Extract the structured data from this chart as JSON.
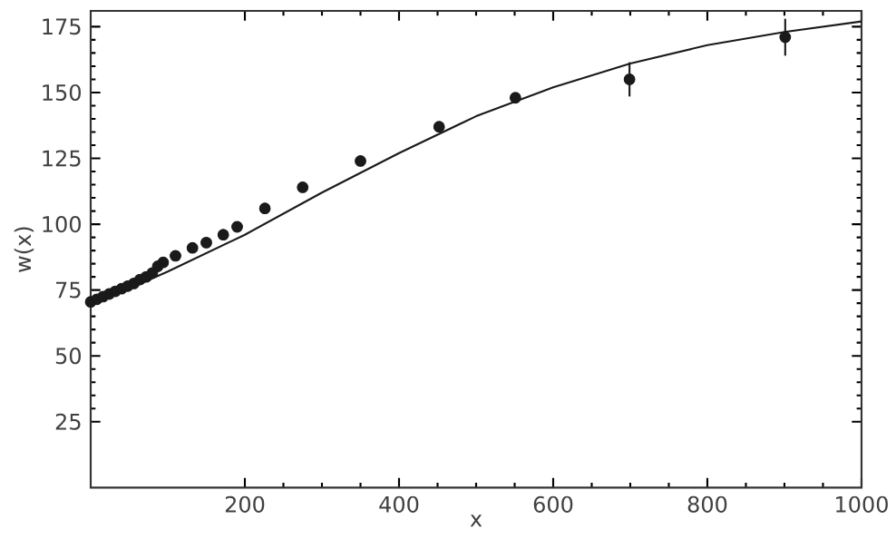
{
  "chart_data": {
    "type": "scatter",
    "xlabel": "x",
    "ylabel": "w(x)",
    "xlim": [
      0,
      1000
    ],
    "ylim": [
      0,
      181
    ],
    "xticks": [
      200,
      400,
      600,
      800,
      1000
    ],
    "yticks": [
      25,
      50,
      75,
      100,
      125,
      150,
      175
    ],
    "grid": false,
    "marker": "circle",
    "series": [
      {
        "color": "#1a1a1a",
        "x": [
          0,
          8,
          16,
          24,
          32,
          40,
          48,
          56,
          64,
          72,
          80,
          87,
          94,
          110,
          132,
          150,
          172,
          190,
          226,
          275,
          350,
          452,
          551,
          699,
          901
        ],
        "values": [
          70.5,
          71.5,
          72.5,
          73.5,
          74.5,
          75.5,
          76.5,
          77.5,
          79,
          80,
          81.5,
          84,
          85.5,
          88,
          91,
          93,
          96,
          99,
          106,
          114,
          124,
          137,
          148,
          155,
          171
        ],
        "errors": [
          null,
          null,
          null,
          null,
          null,
          null,
          null,
          null,
          null,
          null,
          null,
          null,
          null,
          null,
          null,
          null,
          null,
          null,
          null,
          null,
          null,
          null,
          null,
          6.5,
          7
        ]
      },
      {
        "type": "line",
        "color": "#1a1a1a",
        "marker": "none",
        "line_style": "solid",
        "x": [
          0,
          100,
          200,
          300,
          400,
          500,
          600,
          700,
          800,
          900,
          1000
        ],
        "values": [
          69,
          82,
          96,
          112,
          127,
          141,
          152,
          161,
          168,
          173,
          177
        ]
      }
    ]
  }
}
